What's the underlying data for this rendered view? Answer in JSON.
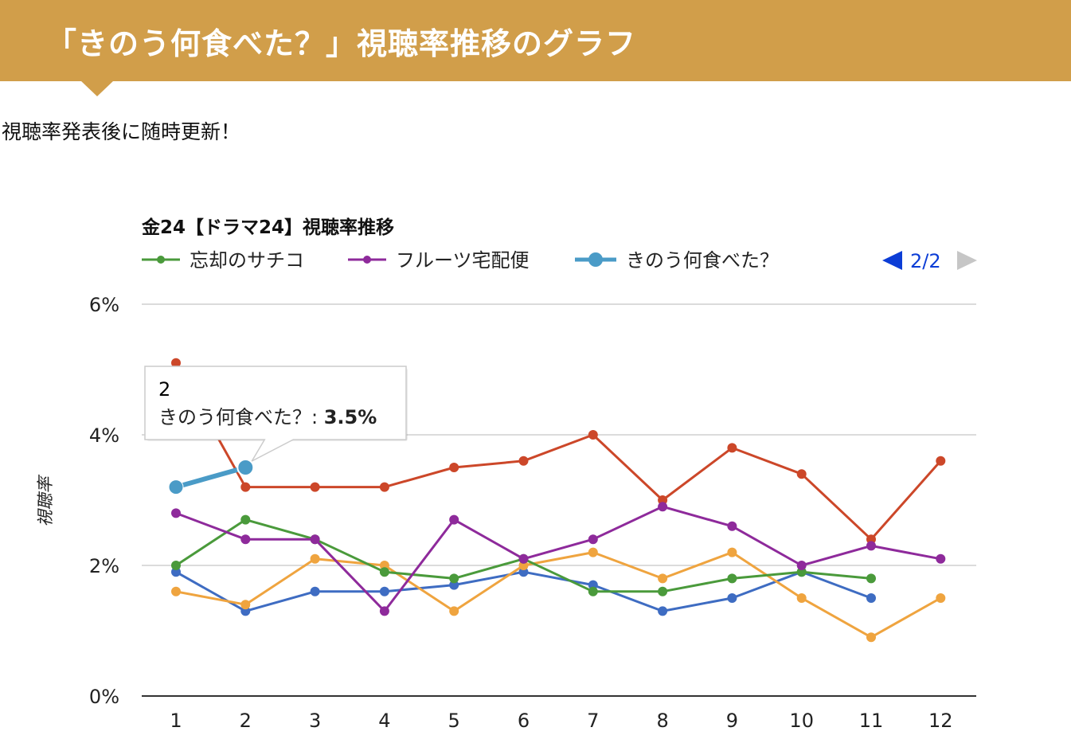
{
  "page": {
    "heading": "「きのう何食べた？」視聴率推移のグラフ",
    "subtitle": "視聴率発表後に随時更新！"
  },
  "chart_data": {
    "type": "line",
    "title": "金24【ドラマ24】視聴率推移",
    "xlabel": "",
    "ylabel": "視聴率",
    "x": [
      1,
      2,
      3,
      4,
      5,
      6,
      7,
      8,
      9,
      10,
      11,
      12
    ],
    "x_tick_labels": [
      "1",
      "2",
      "3",
      "4",
      "5",
      "6",
      "7",
      "8",
      "9",
      "10",
      "11",
      "12"
    ],
    "ylim": [
      0,
      6
    ],
    "y_ticks": [
      0,
      2,
      4,
      6
    ],
    "y_tick_labels": [
      "0%",
      "2%",
      "4%",
      "6%"
    ],
    "grid": true,
    "legend_position": "top",
    "legend_page": "2/2",
    "series": [
      {
        "color": "#cc4729",
        "values": [
          5.1,
          3.2,
          3.2,
          3.2,
          3.5,
          3.6,
          4.0,
          3.0,
          3.8,
          3.4,
          2.4,
          3.6
        ]
      },
      {
        "color": "#3e6cc2",
        "values": [
          1.9,
          1.3,
          1.6,
          1.6,
          1.7,
          1.9,
          1.7,
          1.3,
          1.5,
          1.9,
          1.5,
          null
        ]
      },
      {
        "color": "#efa43f",
        "values": [
          1.6,
          1.4,
          2.1,
          2.0,
          1.3,
          2.0,
          2.2,
          1.8,
          2.2,
          1.5,
          0.9,
          1.5
        ]
      },
      {
        "name": "忘却のサチコ",
        "color": "#4a9a3b",
        "values": [
          2.0,
          2.7,
          2.4,
          1.9,
          1.8,
          2.1,
          1.6,
          1.6,
          1.8,
          1.9,
          1.8,
          null
        ]
      },
      {
        "name": "フルーツ宅配便",
        "color": "#8e2a9b",
        "values": [
          2.8,
          2.4,
          2.4,
          1.3,
          2.7,
          2.1,
          2.4,
          2.9,
          2.6,
          2.0,
          2.3,
          2.1
        ]
      },
      {
        "name": "きのう何食べた？",
        "color": "#4a9bc7",
        "emphasis": true,
        "values": [
          3.2,
          3.5,
          null,
          null,
          null,
          null,
          null,
          null,
          null,
          null,
          null,
          null
        ]
      }
    ],
    "tooltip": {
      "x_label": "2",
      "series_label": "きのう何食べた？: ",
      "value_label": "3.5%",
      "series_index": 5,
      "point_index": 1
    }
  }
}
